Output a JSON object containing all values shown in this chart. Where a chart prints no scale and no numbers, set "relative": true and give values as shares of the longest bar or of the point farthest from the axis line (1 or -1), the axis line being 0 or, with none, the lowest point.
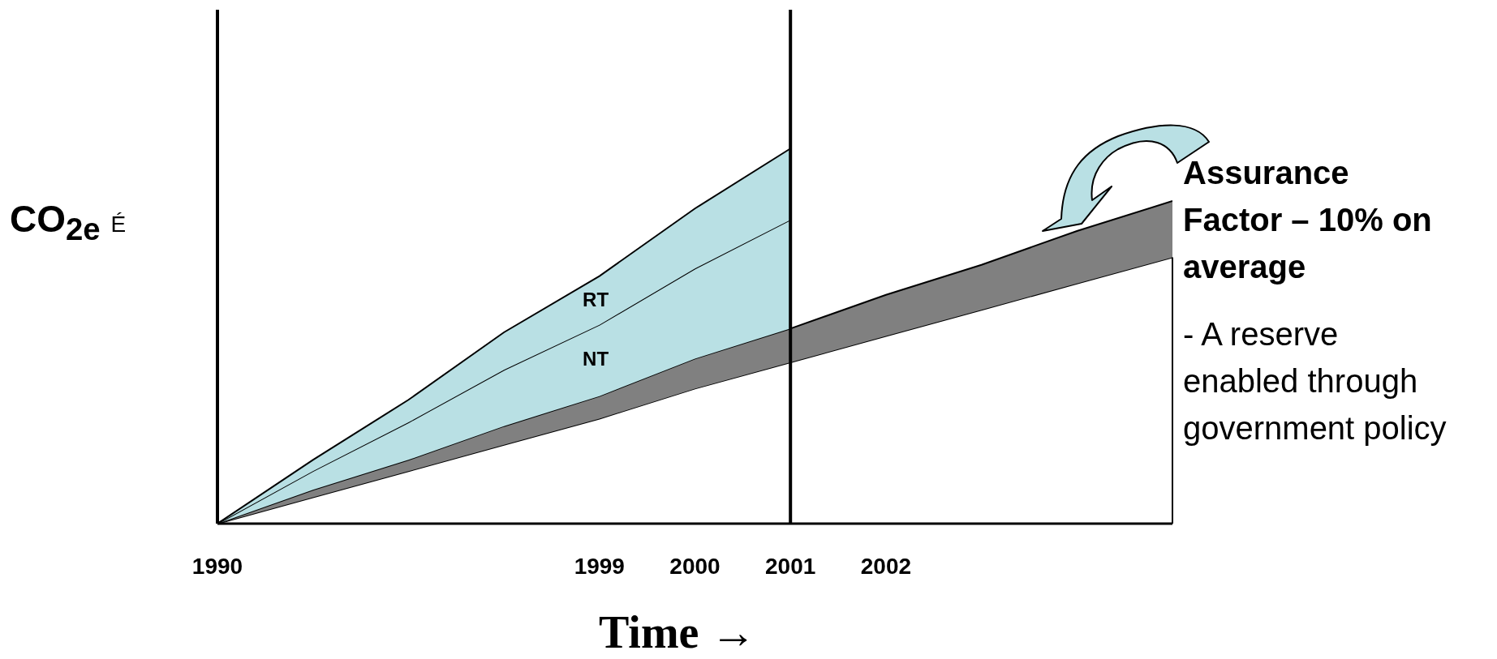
{
  "chart_data": {
    "type": "area",
    "relative": true,
    "stacked": true,
    "xlabel": "Time →",
    "ylabel": "CO$_{2e}$ É",
    "categories": [
      "1990",
      null,
      null,
      null,
      "1999",
      "2000",
      "2001",
      "2002",
      null,
      null,
      null
    ],
    "series": [
      {
        "color": "#ffffff",
        "values": [
          0,
          0.07,
          0.14,
          0.21,
          0.28,
          0.36,
          0.43,
          0.5,
          0.57,
          0.64,
          0.71
        ]
      },
      {
        "color": "#808080",
        "values": [
          0,
          0.02,
          0.03,
          0.05,
          0.06,
          0.08,
          0.09,
          0.11,
          0.12,
          0.14,
          0.15
        ]
      },
      {
        "name": "NT",
        "color": "#b9e0e4",
        "values": [
          0,
          0.05,
          0.1,
          0.15,
          0.19,
          0.24,
          0.29,
          null,
          null,
          null,
          null
        ]
      },
      {
        "name": "RT",
        "color": "#b9e0e4",
        "values": [
          0,
          0.03,
          0.06,
          0.1,
          0.13,
          0.16,
          0.19,
          null,
          null,
          null,
          null
        ]
      }
    ],
    "ref_lines": [
      {
        "axis": "x",
        "value": "2001",
        "color": "#000000"
      }
    ],
    "annotations": [
      "Assurance Factor – 10% on average",
      "- A reserve enabled through government policy"
    ],
    "grid": false,
    "legend": false
  }
}
